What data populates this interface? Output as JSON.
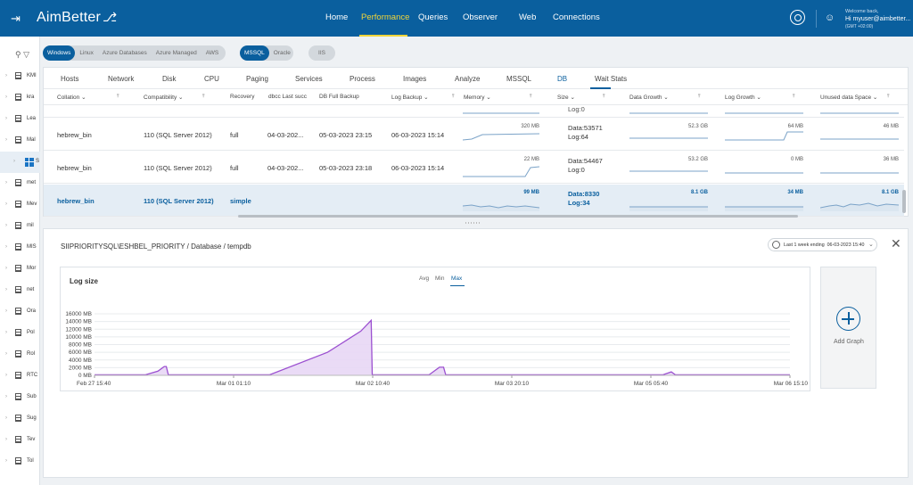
{
  "app": {
    "name": "AimBetter"
  },
  "nav": {
    "items": [
      {
        "label": "Home",
        "active": false
      },
      {
        "label": "Performance",
        "active": true
      },
      {
        "label": "Queries",
        "active": false
      },
      {
        "label": "Observer",
        "active": false
      },
      {
        "label": "Web",
        "active": false
      },
      {
        "label": "Connections",
        "active": false
      }
    ],
    "accent_color": "#f0d43a",
    "bar_color": "#0a5f9e"
  },
  "user": {
    "welcome": "Welcome back,",
    "greeting": "Hi myuser@aimbetter...",
    "timezone": "(GMT +02:00)"
  },
  "sidebar": {
    "items": [
      {
        "label": "KMI",
        "icon": "server-icon"
      },
      {
        "label": "kra",
        "icon": "server-icon"
      },
      {
        "label": "Lea",
        "icon": "server-icon"
      },
      {
        "label": "Mal",
        "icon": "server-icon",
        "expanded": true
      },
      {
        "label": "S",
        "icon": "windows-icon",
        "selected": true
      },
      {
        "label": "met",
        "icon": "server-icon"
      },
      {
        "label": "Mev",
        "icon": "server-icon"
      },
      {
        "label": "mil",
        "icon": "server-icon"
      },
      {
        "label": "MIS",
        "icon": "server-icon"
      },
      {
        "label": "Mor",
        "icon": "server-icon"
      },
      {
        "label": "net",
        "icon": "server-icon"
      },
      {
        "label": "Ora",
        "icon": "server-icon"
      },
      {
        "label": "Pol",
        "icon": "server-icon"
      },
      {
        "label": "Rol",
        "icon": "server-icon"
      },
      {
        "label": "RTC",
        "icon": "server-icon"
      },
      {
        "label": "Sub",
        "icon": "server-icon"
      },
      {
        "label": "Sug",
        "icon": "server-icon"
      },
      {
        "label": "Tev",
        "icon": "server-icon"
      },
      {
        "label": "Tol",
        "icon": "server-icon"
      }
    ]
  },
  "filters": {
    "os": [
      {
        "label": "Windows",
        "active": true
      },
      {
        "label": "Linux",
        "active": false
      },
      {
        "label": "Azure Databases",
        "active": false
      },
      {
        "label": "Azure Managed",
        "active": false
      },
      {
        "label": "AWS",
        "active": false
      }
    ],
    "db": [
      {
        "label": "MSSQL",
        "active": true
      },
      {
        "label": "Oracle",
        "active": false
      }
    ],
    "iis": {
      "label": "IIS",
      "active": false
    }
  },
  "tabs": [
    "Hosts",
    "Network",
    "Disk",
    "CPU",
    "Paging",
    "Services",
    "Process",
    "Images",
    "Analyze",
    "MSSQL",
    "DB",
    "Wait Stats"
  ],
  "active_tab": "DB",
  "table": {
    "columns": [
      "Collation",
      "Compatibility",
      "Recovery",
      "dbcc Last succ",
      "DB Full Backup",
      "Log Backup",
      "Memory",
      "Size",
      "Data Growth",
      "Log Growth",
      "Unused data Space"
    ],
    "partial_row": {
      "size_text": "Log:0"
    },
    "rows": [
      {
        "collation": "hebrew_bin",
        "compatibility": "110 (SQL Server 2012)",
        "recovery": "full",
        "dbcc": "04-03-202...",
        "full_backup": "05-03-2023 23:15",
        "log_backup": "06-03-2023 15:14",
        "memory": "320 MB",
        "size_data": "Data:53571",
        "size_log": "Log:64",
        "data_growth": "52.3 GB",
        "log_growth": "64 MB",
        "unused": "46 MB",
        "highlight": false
      },
      {
        "collation": "hebrew_bin",
        "compatibility": "110 (SQL Server 2012)",
        "recovery": "full",
        "dbcc": "04-03-202...",
        "full_backup": "05-03-2023 23:18",
        "log_backup": "06-03-2023 15:14",
        "memory": "22 MB",
        "size_data": "Data:54467",
        "size_log": "Log:0",
        "data_growth": "53.2 GB",
        "log_growth": "0 MB",
        "unused": "36 MB",
        "highlight": false
      },
      {
        "collation": "hebrew_bin",
        "compatibility": "110 (SQL Server 2012)",
        "recovery": "simple",
        "dbcc": "",
        "full_backup": "",
        "log_backup": "",
        "memory": "99 MB",
        "size_data": "Data:8330",
        "size_log": "Log:34",
        "data_growth": "8.1 GB",
        "log_growth": "34 MB",
        "unused": "8.1 GB",
        "highlight": true
      }
    ]
  },
  "detail": {
    "breadcrumb": "SIIPRIORITYSQL\\ESHBEL_PRIORITY / Database / tempdb",
    "range_label": "Last 1 week ending",
    "range_end": "06-03-2023 15:40",
    "add_graph_label": "Add Graph"
  },
  "chart": {
    "title": "Log size",
    "aggregates": [
      "Avg",
      "Min",
      "Max"
    ],
    "active_aggregate": "Max"
  },
  "chart_data": {
    "type": "area",
    "title": "Log size",
    "xlabel": "",
    "ylabel": "",
    "y_ticks": [
      "0 MB",
      "2000 MB",
      "4000 MB",
      "6000 MB",
      "8000 MB",
      "10000 MB",
      "12000 MB",
      "14000 MB",
      "16000 MB"
    ],
    "x_ticks": [
      "Feb 27 15:40",
      "Mar 01 01:10",
      "Mar 02 10:40",
      "Mar 03 20:10",
      "Mar 05 05:40",
      "Mar 06 15:10"
    ],
    "ylim": [
      0,
      16000
    ],
    "xlim": [
      "2023-02-27 15:40",
      "2023-03-06 15:40"
    ],
    "series": [
      {
        "color": "#9b4fd0",
        "fill": "#e8d7f5",
        "x": [
          "2023-02-27 15:40",
          "2023-02-28 04:00",
          "2023-02-28 07:00",
          "2023-02-28 08:30",
          "2023-02-28 09:00",
          "2023-02-28 09:30",
          "2023-03-01 10:00",
          "2023-03-02 00:00",
          "2023-03-02 08:00",
          "2023-03-02 10:30",
          "2023-03-02 10:45",
          "2023-03-03 00:30",
          "2023-03-03 03:00",
          "2023-03-03 04:00",
          "2023-03-03 04:30",
          "2023-03-05 09:00",
          "2023-03-05 11:00",
          "2023-03-05 12:00",
          "2023-03-06 15:40"
        ],
        "values": [
          150,
          150,
          1100,
          2300,
          2300,
          150,
          150,
          6000,
          11500,
          14300,
          150,
          150,
          2100,
          2100,
          150,
          150,
          900,
          150,
          150
        ]
      }
    ],
    "grid": true
  }
}
